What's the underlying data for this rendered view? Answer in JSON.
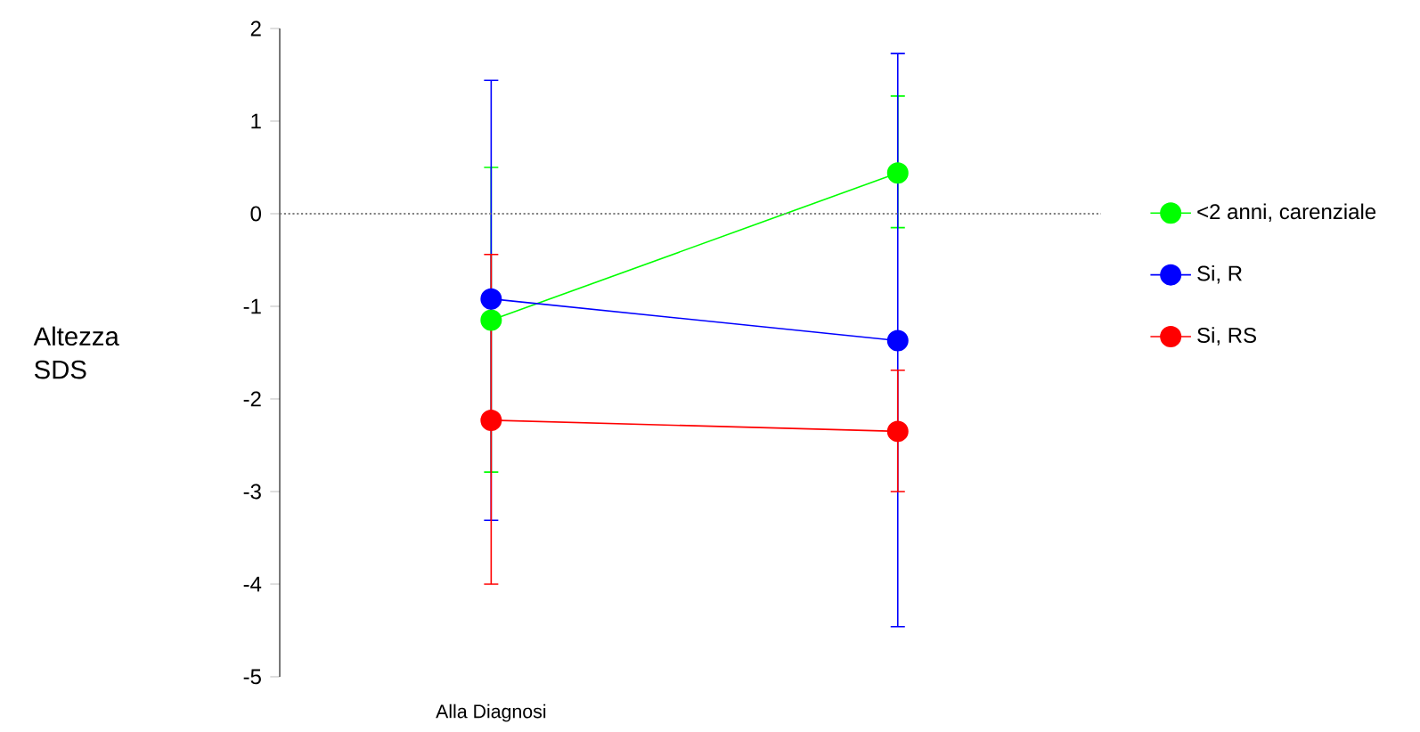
{
  "chart_data": {
    "type": "line",
    "ylabel": "Altezza SDS",
    "categories": [
      "Alla Diagnosi",
      null
    ],
    "series": [
      {
        "name": "<2 anni, carenziale",
        "color": "#00ff00",
        "values": [
          -1.15,
          0.44
        ],
        "errors": [
          [
            -2.79,
            0.5
          ],
          [
            -0.15,
            1.27
          ]
        ]
      },
      {
        "name": "Si, R",
        "color": "#0000ff",
        "values": [
          -0.92,
          -1.37
        ],
        "errors": [
          [
            -3.31,
            1.44
          ],
          [
            -4.46,
            1.73
          ]
        ]
      },
      {
        "name": "Si, RS",
        "color": "#ff0000",
        "values": [
          -2.23,
          -2.35
        ],
        "errors": [
          [
            -4.0,
            -0.44
          ],
          [
            -3.0,
            -1.69
          ]
        ]
      }
    ],
    "ylim": [
      -5,
      2
    ],
    "yticks": [
      -5,
      -4,
      -3,
      -2,
      -1,
      0,
      1,
      2
    ],
    "ref_lines": [
      {
        "axis": "y",
        "value": 0,
        "color": "#808080",
        "line_style": "dotted"
      }
    ],
    "marker": "circle",
    "legend": "right"
  }
}
